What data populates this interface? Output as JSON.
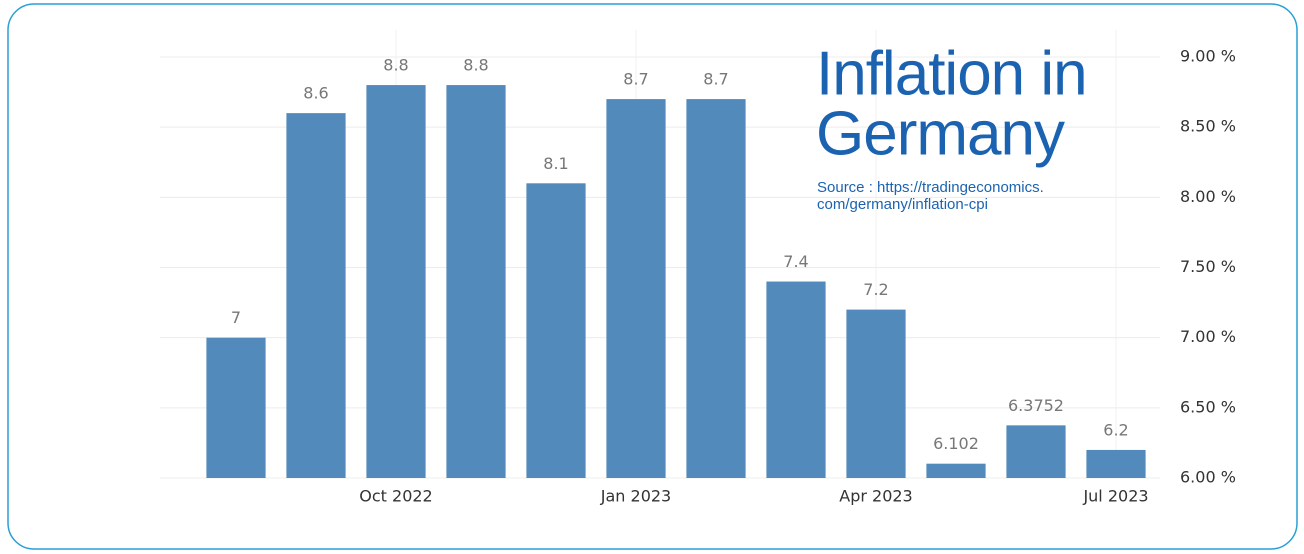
{
  "chart_data": {
    "type": "bar",
    "title": [
      "Inflation in",
      "Germany"
    ],
    "source": [
      "Source :  https://tradingeconomics.",
      "com/germany/inflation-cpi"
    ],
    "categories": [
      null,
      null,
      "Oct 2022",
      null,
      null,
      "Jan 2023",
      null,
      null,
      "Apr 2023",
      null,
      null,
      "Jul 2023"
    ],
    "values": [
      7,
      8.6,
      8.8,
      8.8,
      8.1,
      8.7,
      8.7,
      7.4,
      7.2,
      6.102,
      6.3752,
      6.2
    ],
    "color": "#528bbb",
    "ylim": [
      6,
      9
    ],
    "yticks": [
      {
        "value": 6,
        "label": "6.00 %"
      },
      {
        "value": 6.5,
        "label": "6.50 %"
      },
      {
        "value": 7,
        "label": "7.00 %"
      },
      {
        "value": 7.5,
        "label": "7.50 %"
      },
      {
        "value": 8,
        "label": "8.00 %"
      },
      {
        "value": 8.5,
        "label": "8.50 %"
      },
      {
        "value": 9,
        "label": "9.00 %"
      }
    ],
    "grid": true,
    "y_axis_side": "right"
  }
}
